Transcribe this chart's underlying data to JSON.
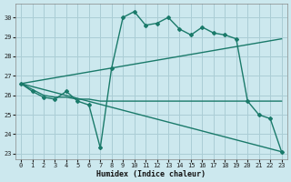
{
  "title": "",
  "xlabel": "Humidex (Indice chaleur)",
  "xlim": [
    -0.5,
    23.5
  ],
  "ylim": [
    22.7,
    30.7
  ],
  "yticks": [
    23,
    24,
    25,
    26,
    27,
    28,
    29,
    30
  ],
  "xticks": [
    0,
    1,
    2,
    3,
    4,
    5,
    6,
    7,
    8,
    9,
    10,
    11,
    12,
    13,
    14,
    15,
    16,
    17,
    18,
    19,
    20,
    21,
    22,
    23
  ],
  "bg_color": "#cce8ee",
  "grid_color": "#aacdd5",
  "line_color": "#1a7a6a",
  "line1_x": [
    0,
    1,
    2,
    3,
    4,
    5,
    6,
    7,
    8,
    9,
    10,
    11,
    12,
    13,
    14,
    15,
    16,
    17,
    18,
    19,
    20,
    21,
    22,
    23
  ],
  "line1_y": [
    26.6,
    26.2,
    25.9,
    25.8,
    26.2,
    25.7,
    25.5,
    23.3,
    27.4,
    30.0,
    30.3,
    29.6,
    29.7,
    30.0,
    29.4,
    29.1,
    29.5,
    29.2,
    29.1,
    28.9,
    25.7,
    25.0,
    24.8,
    23.1
  ],
  "line2_x": [
    0,
    1,
    2,
    3,
    4,
    5,
    6,
    7,
    8,
    9,
    10,
    11,
    12,
    13,
    14,
    15,
    16,
    17,
    18,
    19,
    20,
    21,
    22,
    23
  ],
  "line2_y": [
    26.6,
    26.3,
    26.0,
    25.9,
    25.9,
    25.8,
    25.8,
    25.7,
    25.7,
    25.7,
    25.7,
    25.7,
    25.7,
    25.7,
    25.7,
    25.7,
    25.7,
    25.7,
    25.7,
    25.7,
    25.7,
    25.7,
    25.7,
    25.7
  ],
  "line3_x": [
    0,
    23
  ],
  "line3_y": [
    26.6,
    28.9
  ],
  "line4_x": [
    0,
    23
  ],
  "line4_y": [
    26.6,
    23.1
  ]
}
